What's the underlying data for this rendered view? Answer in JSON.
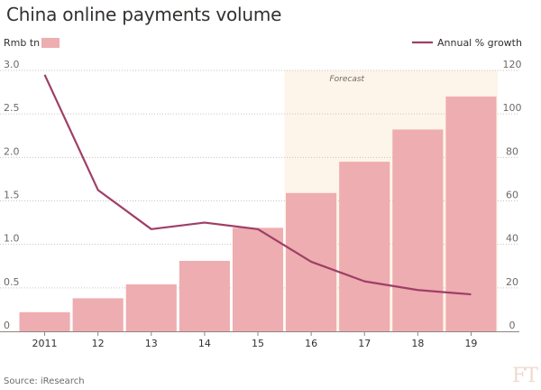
{
  "title": "China online payments volume",
  "source": "Source: iResearch",
  "logo_text": "FT",
  "colors": {
    "bar": "#eeadb0",
    "line": "#9e3f67",
    "forecast_band": "#fdf4ea",
    "grid": "#c8c2bd",
    "text": "#33302e",
    "muted": "#6e6a67"
  },
  "chart_data": {
    "type": "bar+line",
    "categories": [
      "2011",
      "12",
      "13",
      "14",
      "15",
      "16",
      "17",
      "18",
      "19"
    ],
    "series": [
      {
        "name": "Rmb tn",
        "type": "bar",
        "axis": "left",
        "values": [
          0.22,
          0.38,
          0.54,
          0.81,
          1.19,
          1.59,
          1.95,
          2.32,
          2.7
        ]
      },
      {
        "name": "Annual % growth",
        "type": "line",
        "axis": "right",
        "values": [
          118,
          65,
          47,
          50,
          47,
          32,
          23,
          19,
          17
        ]
      }
    ],
    "left_axis": {
      "ticks": [
        "3.0",
        "2.5",
        "2.0",
        "1.5",
        "1.0",
        "0.5",
        "0"
      ],
      "range": [
        0,
        3.0
      ]
    },
    "right_axis": {
      "ticks": [
        "120",
        "100",
        "80",
        "60",
        "40",
        "20",
        "0"
      ],
      "range": [
        0,
        120
      ]
    },
    "annotation": {
      "text": "Forecast",
      "from_category": "16",
      "to_category": "19"
    },
    "legend": {
      "bar_label": "Rmb tn",
      "line_label": "Annual % growth"
    },
    "grid": true
  }
}
